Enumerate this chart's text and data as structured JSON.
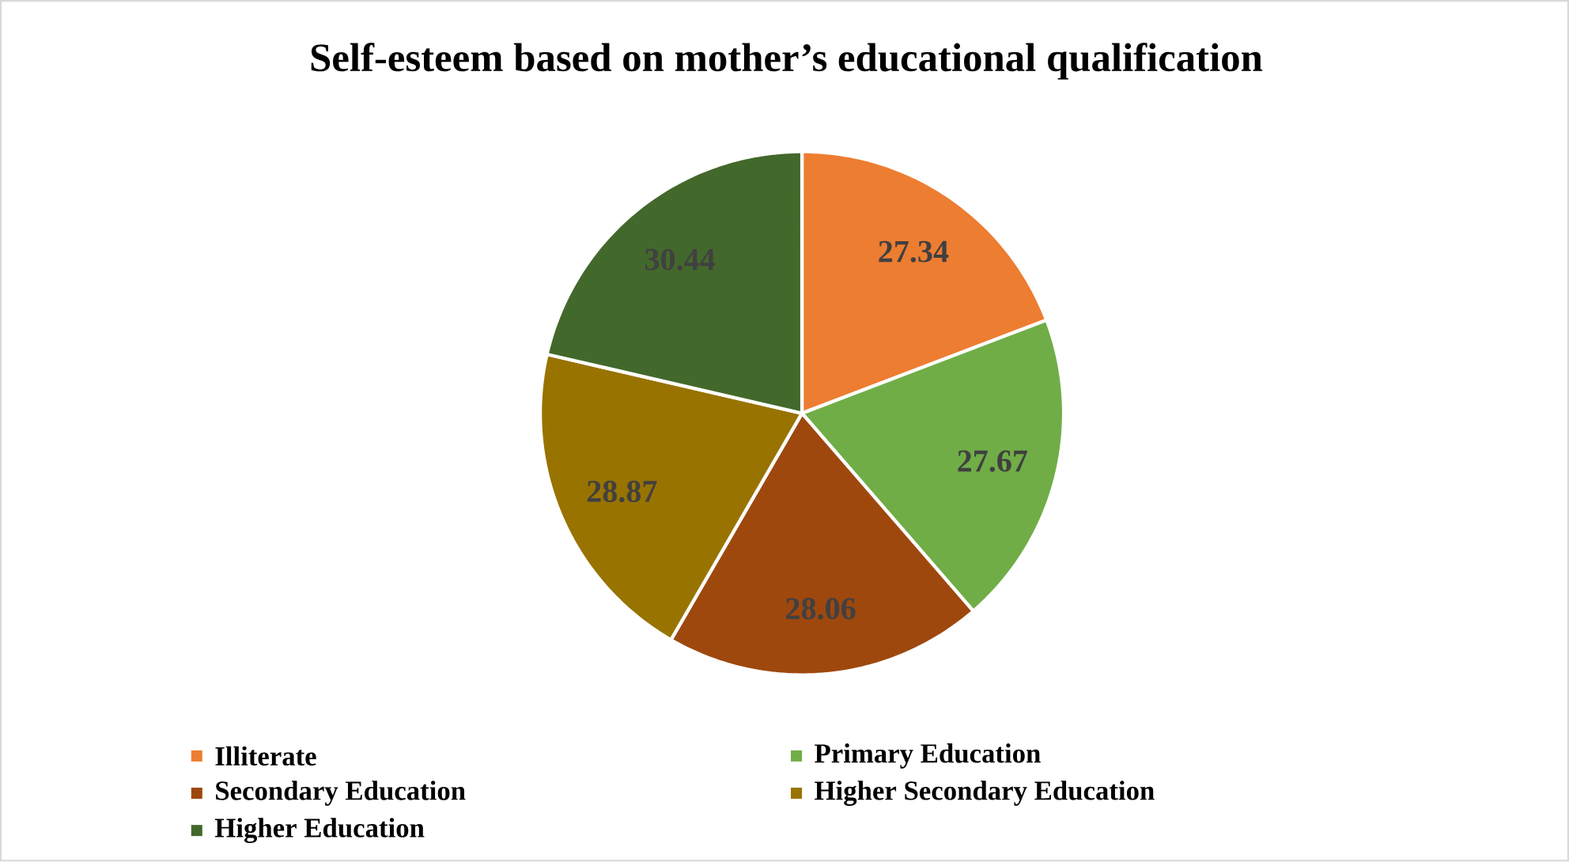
{
  "chart_data": {
    "type": "pie",
    "title": "Self-esteem based on mother’s educational qualification",
    "categories": [
      "Illiterate",
      "Primary Education",
      "Secondary Education",
      "Higher Secondary Education",
      "Higher Education"
    ],
    "values": [
      27.34,
      27.67,
      28.06,
      28.87,
      30.44
    ],
    "colors": [
      "#ed7d31",
      "#70ad47",
      "#9e480e",
      "#997300",
      "#43682b"
    ],
    "data_labels": true,
    "legend": "bottom"
  }
}
